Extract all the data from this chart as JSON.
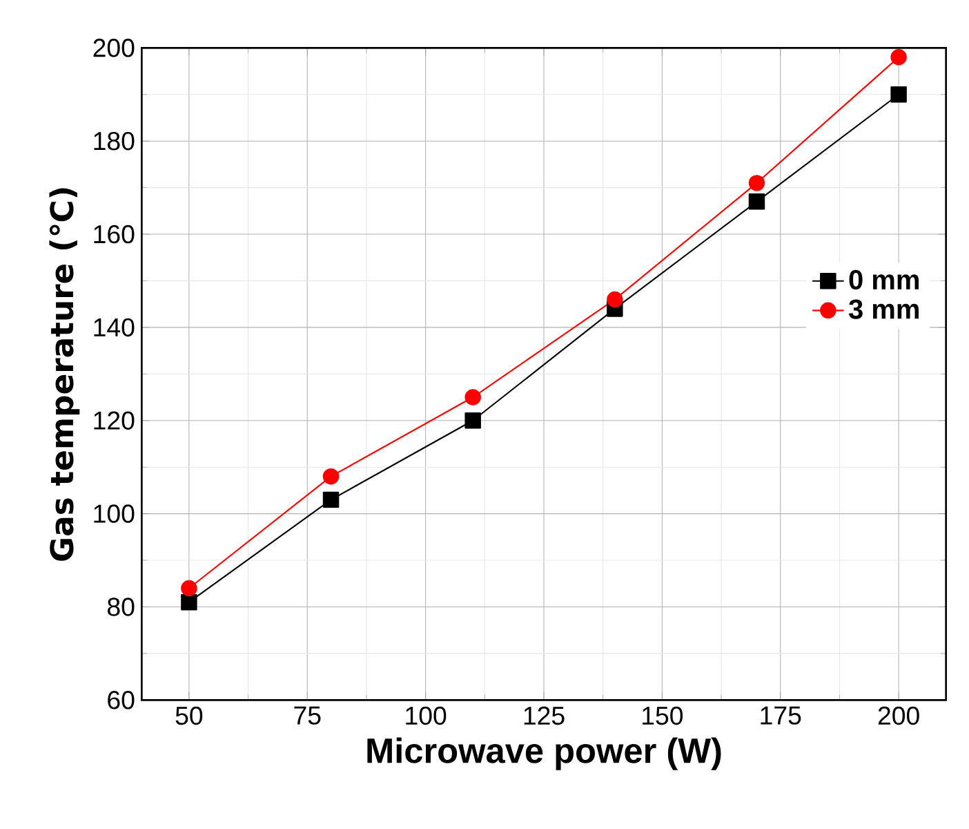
{
  "chart_data": {
    "type": "line",
    "xlabel": "Microwave power (W)",
    "ylabel": "Gas temperature (℃)",
    "x": [
      50,
      80,
      110,
      140,
      170,
      200
    ],
    "series": [
      {
        "name": "0 mm",
        "color": "#000000",
        "marker": "square",
        "values": [
          81,
          103,
          120,
          144,
          167,
          190
        ]
      },
      {
        "name": "3 mm",
        "color": "#ff0000",
        "marker": "circle",
        "values": [
          84,
          108,
          125,
          146,
          171,
          198
        ]
      }
    ],
    "xlim": [
      40,
      210
    ],
    "xticks": [
      50,
      75,
      100,
      125,
      150,
      175,
      200
    ],
    "ylim": [
      60,
      200
    ],
    "yticks": [
      60,
      80,
      100,
      120,
      140,
      160,
      180,
      200
    ],
    "grid": true,
    "legend": "right",
    "line_style": "solid"
  }
}
